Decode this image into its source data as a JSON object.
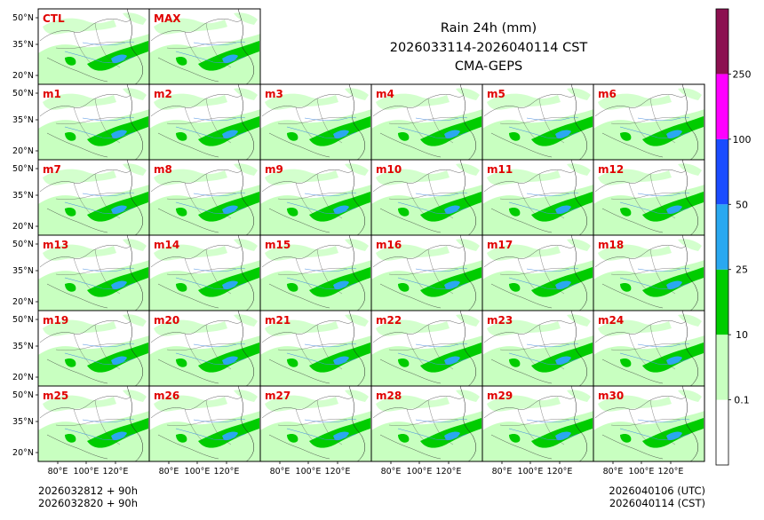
{
  "title": {
    "line1": "Rain 24h (mm)",
    "line2": "2026033114-2026040114 CST",
    "line3": "CMA-GEPS"
  },
  "top_panels": [
    "CTL",
    "MAX"
  ],
  "member_panels": [
    "m1",
    "m2",
    "m3",
    "m4",
    "m5",
    "m6",
    "m7",
    "m8",
    "m9",
    "m10",
    "m11",
    "m12",
    "m13",
    "m14",
    "m15",
    "m16",
    "m17",
    "m18",
    "m19",
    "m20",
    "m21",
    "m22",
    "m23",
    "m24",
    "m25",
    "m26",
    "m27",
    "m28",
    "m29",
    "m30"
  ],
  "axes": {
    "lat_ticks": [
      "50°N",
      "35°N",
      "20°N"
    ],
    "lon_ticks": [
      "80°E",
      "100°E",
      "120°E"
    ]
  },
  "colorbar": {
    "labels": [
      "0.1",
      "10",
      "25",
      "50",
      "100",
      "250"
    ],
    "colors": [
      "#ffffff",
      "#c8ffc0",
      "#00cc00",
      "#2aa8f0",
      "#1a4cff",
      "#ff00ff",
      "#8c1050"
    ]
  },
  "footer": {
    "init_time_utc": "2026032812 + 90h",
    "init_time_cst": "2026032820 + 90h",
    "valid_time_utc": "2026040106 (UTC)",
    "valid_time_cst": "2026040114 (CST)"
  }
}
